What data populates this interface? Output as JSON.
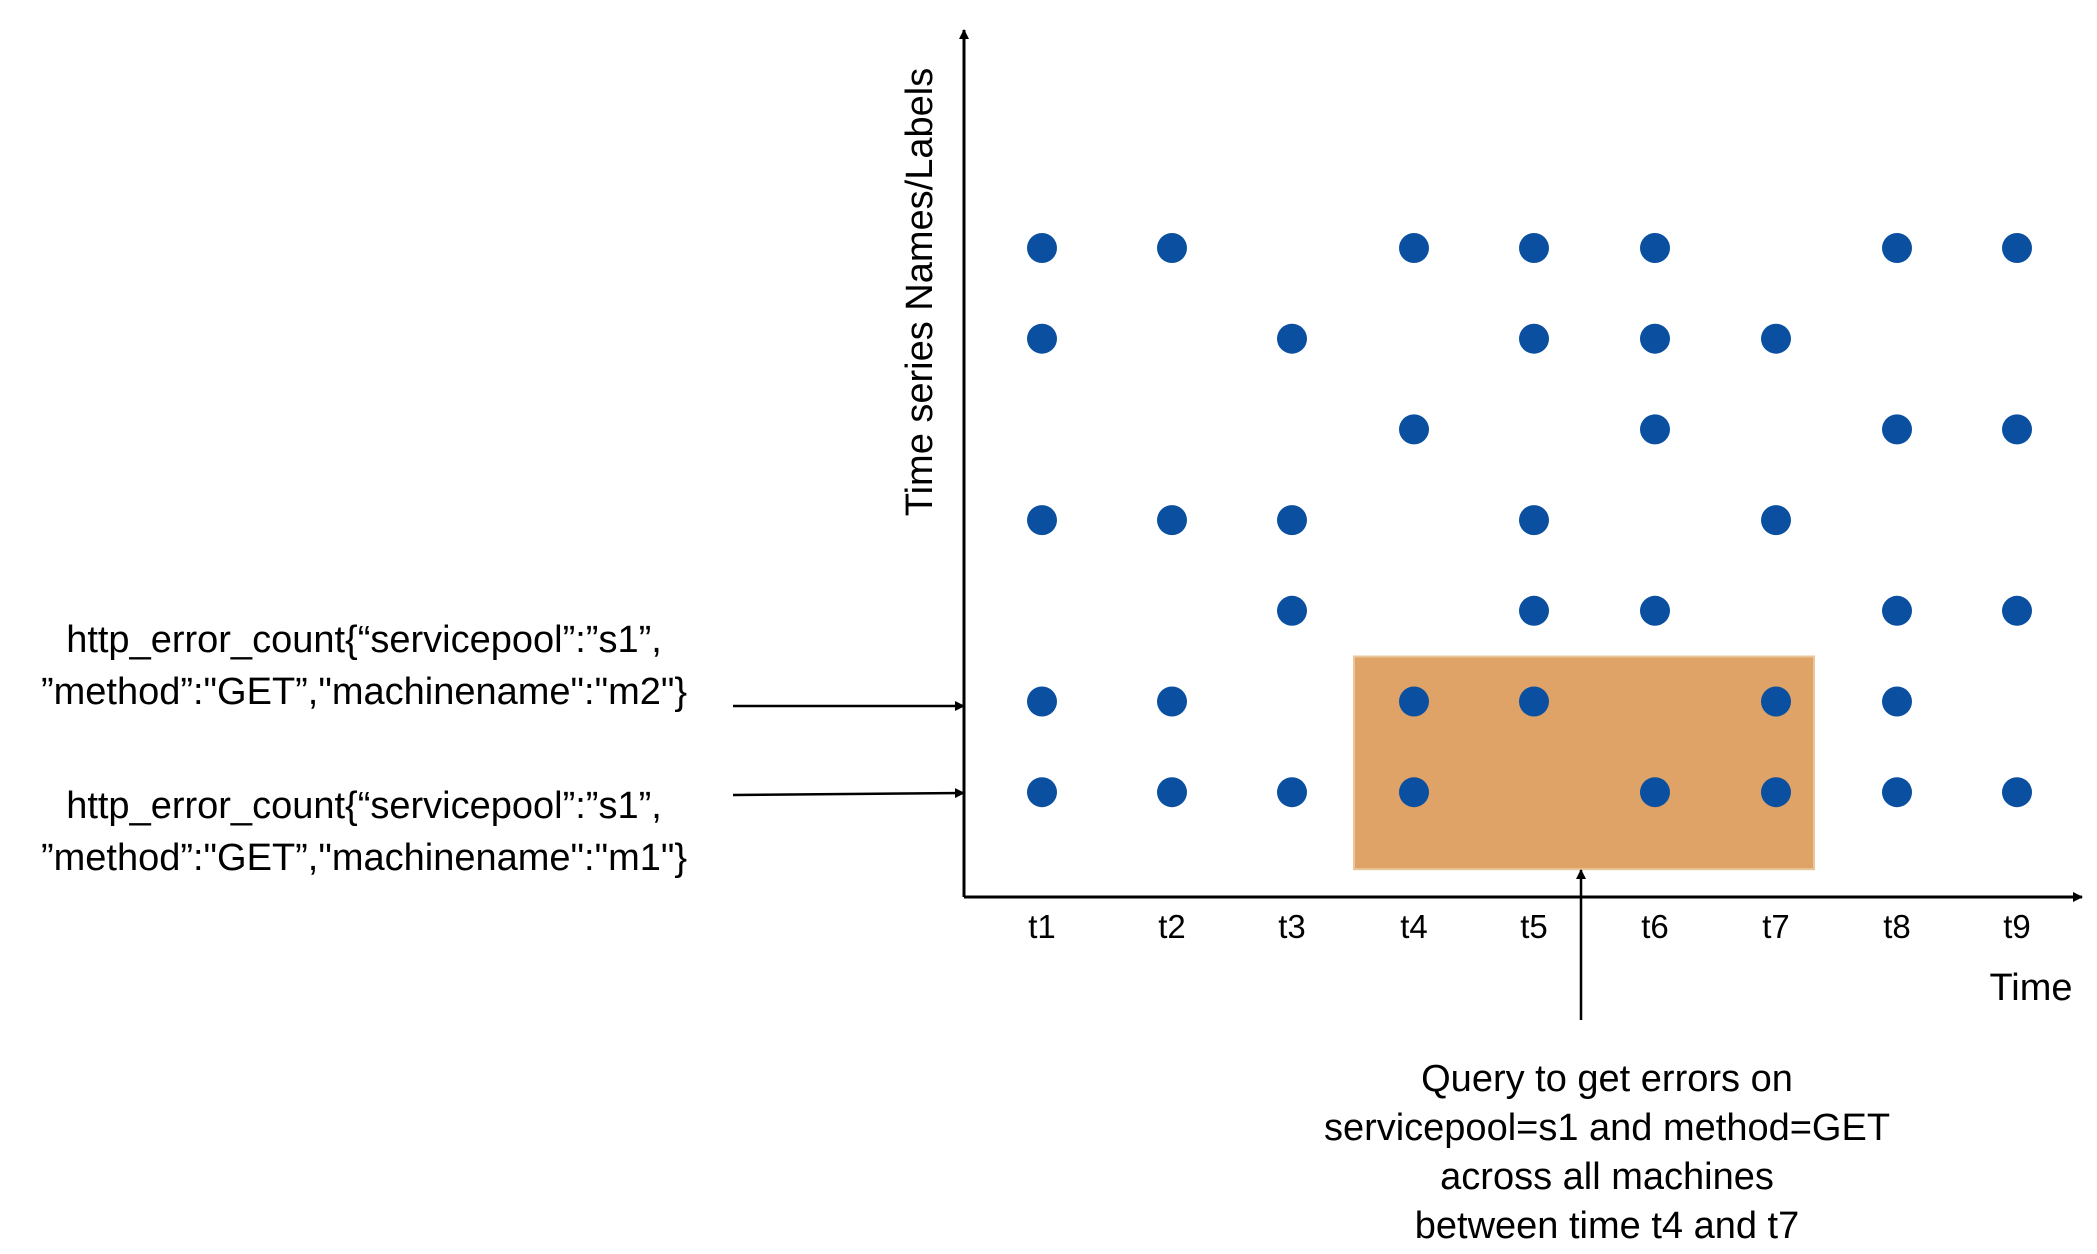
{
  "axes": {
    "y_title": "Time series Names/Labels",
    "x_title": "Time",
    "x_ticks": [
      "t1",
      "t2",
      "t3",
      "t4",
      "t5",
      "t6",
      "t7",
      "t8",
      "t9"
    ]
  },
  "rows": [
    {
      "present": [
        "t1",
        "t2",
        "t4",
        "t5",
        "t6",
        "t8",
        "t9"
      ]
    },
    {
      "present": [
        "t1",
        "t3",
        "t5",
        "t6",
        "t7"
      ]
    },
    {
      "present": [
        "t4",
        "t6",
        "t8",
        "t9"
      ]
    },
    {
      "present": [
        "t1",
        "t2",
        "t3",
        "t5",
        "t7"
      ]
    },
    {
      "present": [
        "t3",
        "t5",
        "t6",
        "t8",
        "t9"
      ]
    },
    {
      "present": [
        "t1",
        "t2",
        "t4",
        "t5",
        "t7",
        "t8"
      ]
    },
    {
      "present": [
        "t1",
        "t2",
        "t3",
        "t4",
        "t6",
        "t7",
        "t8",
        "t9"
      ]
    }
  ],
  "series_labels": [
    {
      "row": 5,
      "line1": "http_error_count{“servicepool”:”s1”,",
      "line2": "”method”:\"GET”,\"machinename\":\"m2\"}"
    },
    {
      "row": 6,
      "line1": "http_error_count{“servicepool”:”s1”,",
      "line2": "”method”:\"GET”,\"machinename\":\"m1\"}"
    }
  ],
  "query_region": {
    "from": "t4",
    "to": "t7",
    "rows": [
      5,
      6
    ],
    "fill_color": "#dfa267",
    "note_lines": [
      "Query to get errors on",
      "servicepool=s1 and method=GET",
      "across all machines",
      "between time t4 and t7"
    ]
  },
  "colors": {
    "point": "#0a4fa0",
    "axis": "#000000"
  }
}
